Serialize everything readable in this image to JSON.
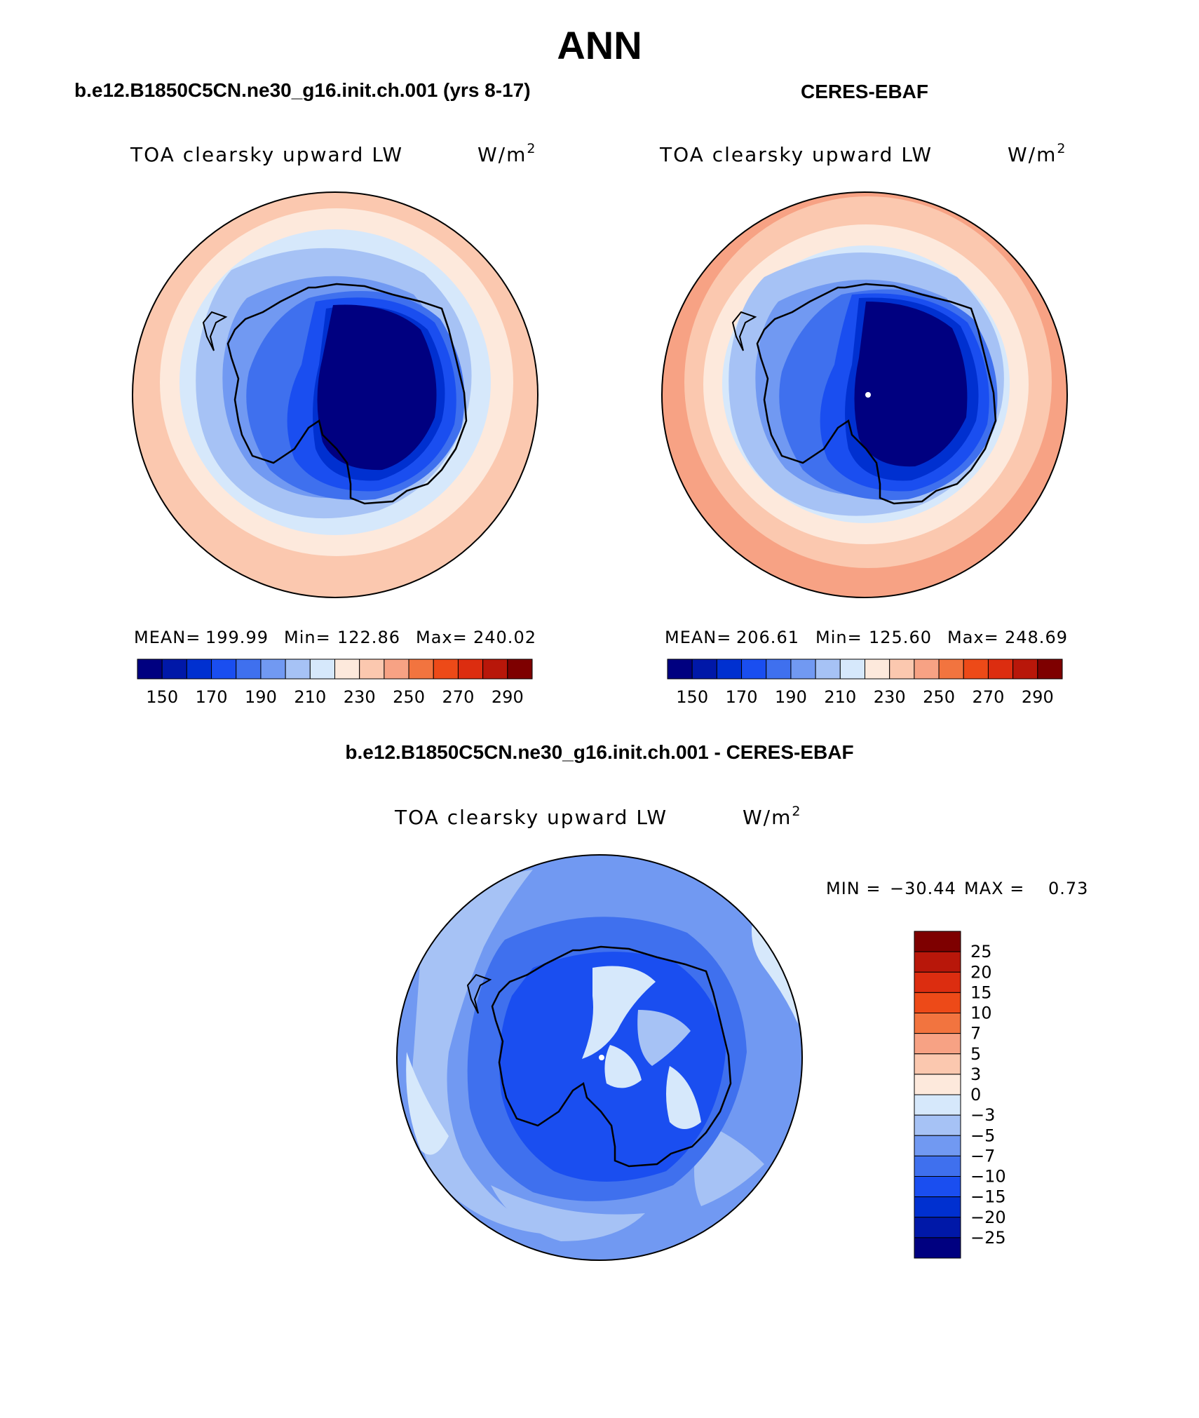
{
  "figure_title": "ANN",
  "panels": [
    {
      "header": "b.e12.B1850C5CN.ne30_g16.init.ch.001 (yrs 8-17)",
      "variable": "TOA clearsky upward LW",
      "units": "W/m",
      "units_sup": "2",
      "stats": {
        "mean_label": "MEAN=",
        "mean": "199.99",
        "min_label": "Min=",
        "min": "122.86",
        "max_label": "Max=",
        "max": "240.02"
      }
    },
    {
      "header": "CERES-EBAF",
      "variable": "TOA clearsky upward LW",
      "units": "W/m",
      "units_sup": "2",
      "stats": {
        "mean_label": "MEAN=",
        "mean": "206.61",
        "min_label": "Min=",
        "min": "125.60",
        "max_label": "Max=",
        "max": "248.69"
      }
    },
    {
      "header": "b.e12.B1850C5CN.ne30_g16.init.ch.001 - CERES-EBAF",
      "variable": "TOA clearsky upward LW",
      "units": "W/m",
      "units_sup": "2",
      "stats": {
        "min_label": "MIN =",
        "min": "−30.44",
        "max_label": "MAX =",
        "max": "0.73"
      }
    }
  ],
  "abs_colorbar": {
    "colors": [
      "#000080",
      "#0018a8",
      "#0030d0",
      "#1a4ef0",
      "#3f70ee",
      "#7199f2",
      "#a6c2f5",
      "#d6e8fb",
      "#fde9dc",
      "#fbc8af",
      "#f7a284",
      "#f2743f",
      "#ed4a18",
      "#dc2d10",
      "#b8170a",
      "#7e0000"
    ],
    "tick_labels": [
      "150",
      "170",
      "190",
      "210",
      "230",
      "250",
      "270",
      "290"
    ]
  },
  "diff_colorbar": {
    "colors_top_to_bottom": [
      "#7e0000",
      "#b8170a",
      "#dc2d10",
      "#ed4a18",
      "#f2743f",
      "#f7a284",
      "#fbc8af",
      "#fde9dc",
      "#d6e8fb",
      "#a6c2f5",
      "#7199f2",
      "#3f70ee",
      "#1a4ef0",
      "#0030d0",
      "#0018a8",
      "#000080"
    ],
    "tick_labels": [
      "25",
      "20",
      "15",
      "10",
      "7",
      "5",
      "3",
      "0",
      "−3",
      "−5",
      "−7",
      "−10",
      "−15",
      "−20",
      "−25"
    ]
  },
  "map_colors": {
    "ocean_warm": "#fbc8af",
    "ocean_warmer": "#f7a284",
    "ocean_light": "#fde9dc",
    "ring_pale": "#d6e8fb",
    "ring_light": "#a6c2f5",
    "ring_mid": "#7199f2",
    "coast_blue": "#3f70ee",
    "ice_blue": "#1a4ef0",
    "ice_deep": "#0030d0",
    "ice_core": "#000080",
    "diff_bg": "#7199f2",
    "diff_pale": "#d6e8fb",
    "diff_light": "#a6c2f5",
    "diff_mid": "#3f70ee",
    "diff_deep": "#1a4ef0",
    "coastline": "#000000"
  }
}
